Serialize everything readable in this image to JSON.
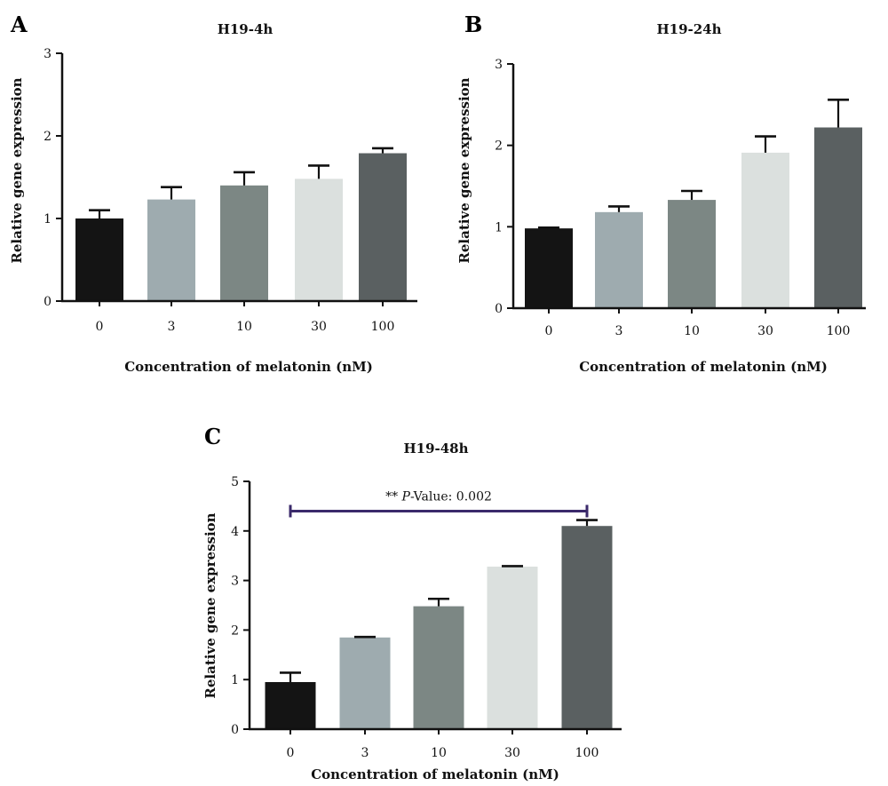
{
  "chart_data": [
    {
      "panel": "A",
      "type": "bar",
      "title": "H19-4h",
      "xlabel": "Concentration of melatonin (nM)",
      "ylabel": "Relative gene expression",
      "categories": [
        "0",
        "3",
        "10",
        "30",
        "100"
      ],
      "values": [
        1.0,
        1.23,
        1.4,
        1.48,
        1.79
      ],
      "errors": [
        0.1,
        0.15,
        0.16,
        0.16,
        0.06
      ],
      "colors": [
        "#141414",
        "#9eabaf",
        "#7c8784",
        "#dbe0de",
        "#5a6061"
      ],
      "ylim": [
        0,
        3
      ],
      "yticks": [
        "0",
        "1",
        "2",
        "3"
      ],
      "grid": false
    },
    {
      "panel": "B",
      "type": "bar",
      "title": "H19-24h",
      "xlabel": "Concentration of melatonin (nM)",
      "ylabel": "Relative gene expression",
      "categories": [
        "0",
        "3",
        "10",
        "30",
        "100"
      ],
      "values": [
        0.98,
        1.18,
        1.33,
        1.91,
        2.22
      ],
      "errors": [
        0.01,
        0.07,
        0.11,
        0.2,
        0.34
      ],
      "colors": [
        "#141414",
        "#9eabaf",
        "#7c8784",
        "#dbe0de",
        "#5a6061"
      ],
      "ylim": [
        0,
        3
      ],
      "yticks": [
        "0",
        "1",
        "2",
        "3"
      ],
      "grid": false
    },
    {
      "panel": "C",
      "type": "bar",
      "title": "H19-48h",
      "xlabel": "Concentration of melatonin (nM)",
      "ylabel": "Relative gene expression",
      "categories": [
        "0",
        "3",
        "10",
        "30",
        "100"
      ],
      "values": [
        0.95,
        1.85,
        2.48,
        3.28,
        4.1
      ],
      "errors": [
        0.19,
        0.01,
        0.15,
        0.01,
        0.12
      ],
      "colors": [
        "#141414",
        "#9eabaf",
        "#7c8784",
        "#dbe0de",
        "#5a6061"
      ],
      "ylim": [
        0,
        5
      ],
      "yticks": [
        "0",
        "1",
        "2",
        "3",
        "4",
        "5"
      ],
      "grid": false,
      "annotation": {
        "text": "** P-Value: 0.002",
        "prefix": "** ",
        "italic": "P",
        "suffix": "-Value: 0.002",
        "from_category": "0",
        "to_category": "100",
        "y_value": 4.4,
        "color": "#3b2a6b"
      }
    }
  ]
}
